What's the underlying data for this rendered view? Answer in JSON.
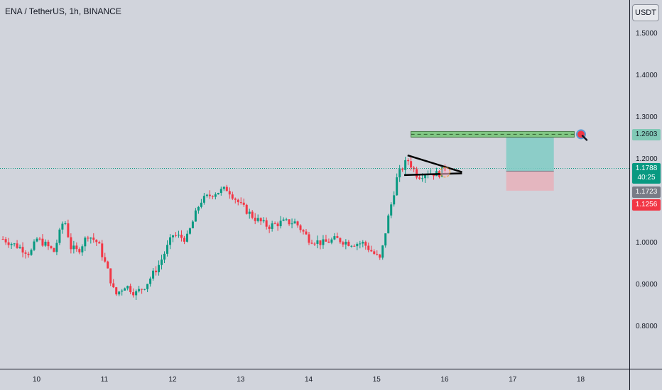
{
  "header": {
    "title": "ENA / TetherUS, 1h, BINANCE",
    "currency_button": "USDT"
  },
  "colors": {
    "background": "#d1d4dc",
    "up": "#089981",
    "down": "#f23645",
    "pattern": "#000000",
    "target_zone": "#80cbc4",
    "stop_zone": "#e8b0ba",
    "target_line": "#4caf50",
    "current_line": "#089981"
  },
  "badges": {
    "target": {
      "price": "1.2603",
      "color": "#81c9b6",
      "text_color": "#131722"
    },
    "current": {
      "price": "1.1788",
      "timer": "40:25",
      "color": "#089981",
      "text_color": "#ffffff"
    },
    "entry": {
      "price": "1.1723",
      "color": "#787b86",
      "text_color": "#ffffff"
    },
    "stop": {
      "price": "1.1256",
      "color": "#f23645",
      "text_color": "#ffffff"
    }
  },
  "chart_data": {
    "type": "candlestick",
    "title": "ENA / TetherUS, 1h, BINANCE",
    "x_ticks": [
      "10",
      "11",
      "12",
      "13",
      "14",
      "15",
      "16",
      "17",
      "18"
    ],
    "y_ticks": [
      "1.5000",
      "1.4000",
      "1.3000",
      "1.2000",
      "1.0000",
      "0.9000",
      "0.8000"
    ],
    "ylim": [
      0.72,
      1.56
    ],
    "series_close_path": [
      [
        9.5,
        1.01
      ],
      [
        9.75,
        0.99
      ],
      [
        9.9,
        0.975
      ],
      [
        10.0,
        1.01
      ],
      [
        10.1,
        1.0
      ],
      [
        10.25,
        0.98
      ],
      [
        10.4,
        1.06
      ],
      [
        10.5,
        0.99
      ],
      [
        10.6,
        0.98
      ],
      [
        10.75,
        1.02
      ],
      [
        10.9,
        1.0
      ],
      [
        11.05,
        0.93
      ],
      [
        11.15,
        0.875
      ],
      [
        11.3,
        0.9
      ],
      [
        11.45,
        0.88
      ],
      [
        11.6,
        0.9
      ],
      [
        11.8,
        0.95
      ],
      [
        12.0,
        1.02
      ],
      [
        12.2,
        1.01
      ],
      [
        12.4,
        1.1
      ],
      [
        12.6,
        1.12
      ],
      [
        12.8,
        1.13
      ],
      [
        13.0,
        1.09
      ],
      [
        13.2,
        1.06
      ],
      [
        13.4,
        1.04
      ],
      [
        13.6,
        1.05
      ],
      [
        13.8,
        1.05
      ],
      [
        14.0,
        1.01
      ],
      [
        14.2,
        1.0
      ],
      [
        14.4,
        1.01
      ],
      [
        14.6,
        1.0
      ],
      [
        14.8,
        1.0
      ],
      [
        15.05,
        0.96
      ],
      [
        15.15,
        1.05
      ],
      [
        15.3,
        1.16
      ],
      [
        15.45,
        1.2
      ],
      [
        15.6,
        1.16
      ],
      [
        15.75,
        1.17
      ],
      [
        15.9,
        1.165
      ],
      [
        16.0,
        1.178
      ]
    ],
    "annotations": {
      "triangle_upper": [
        [
          15.45,
          1.21
        ],
        [
          16.25,
          1.17
        ]
      ],
      "triangle_lower": [
        [
          15.4,
          1.163
        ],
        [
          16.25,
          1.167
        ]
      ],
      "target_level": 1.2603,
      "target_zone": [
        1.1723,
        1.2603
      ],
      "stop_zone": [
        1.1256,
        1.1723
      ],
      "zone_x": [
        16.9,
        17.6
      ]
    }
  }
}
